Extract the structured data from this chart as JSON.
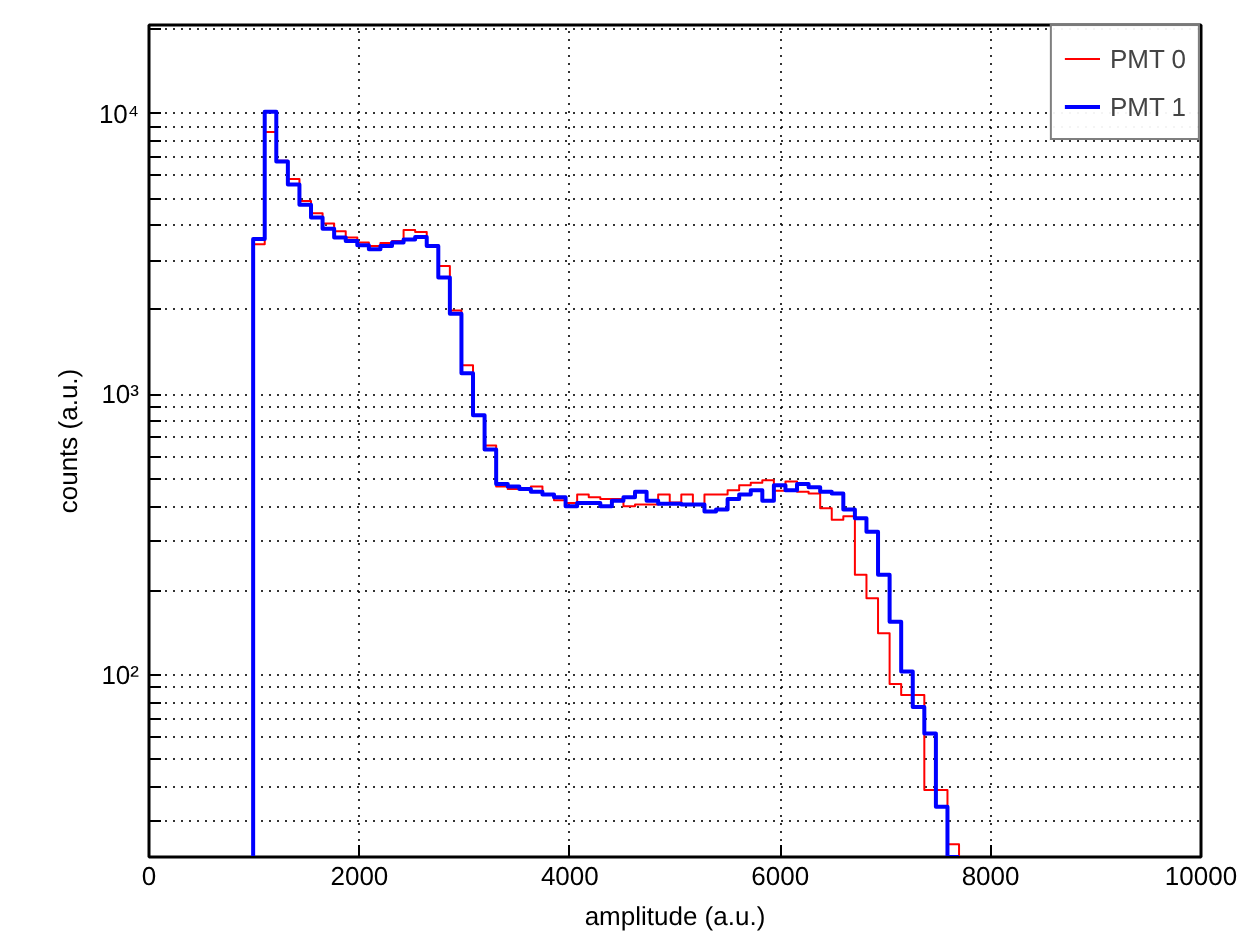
{
  "chart_data": {
    "type": "histogram",
    "xlabel": "amplitude (a.u.)",
    "ylabel": "counts (a.u.)",
    "log": "y",
    "grid": true,
    "legend": "top right",
    "line_style": "solid",
    "xlim": [
      0,
      10000
    ],
    "xticks": [
      0,
      2000,
      4000,
      6000,
      8000,
      10000
    ],
    "ylim": [
      22.5,
      20700
    ],
    "yticks": [
      {
        "value": 30,
        "label": null
      },
      {
        "value": 40,
        "label": null
      },
      {
        "value": 50,
        "label": null
      },
      {
        "value": 60,
        "label": null
      },
      {
        "value": 70,
        "label": null
      },
      {
        "value": 80,
        "label": null
      },
      {
        "value": 90,
        "label": null
      },
      {
        "value": 100,
        "label": "10²"
      },
      {
        "value": 200,
        "label": null
      },
      {
        "value": 300,
        "label": null
      },
      {
        "value": 400,
        "label": null
      },
      {
        "value": 500,
        "label": null
      },
      {
        "value": 600,
        "label": null
      },
      {
        "value": 700,
        "label": null
      },
      {
        "value": 800,
        "label": null
      },
      {
        "value": 900,
        "label": null
      },
      {
        "value": 1000,
        "label": "10³"
      },
      {
        "value": 2000,
        "label": null
      },
      {
        "value": 3000,
        "label": null
      },
      {
        "value": 4000,
        "label": null
      },
      {
        "value": 5000,
        "label": null
      },
      {
        "value": 6000,
        "label": null
      },
      {
        "value": 7000,
        "label": null
      },
      {
        "value": 8000,
        "label": null
      },
      {
        "value": 9000,
        "label": null
      },
      {
        "value": 10000,
        "label": "10⁴"
      },
      {
        "value": 20000,
        "label": null
      }
    ],
    "bins": [
      990,
      1100,
      1210,
      1320,
      1430,
      1540,
      1650,
      1760,
      1870,
      1980,
      2090,
      2200,
      2310,
      2420,
      2530,
      2640,
      2750,
      2860,
      2970,
      3080,
      3190,
      3300,
      3410,
      3520,
      3630,
      3740,
      3850,
      3960,
      4070,
      4180,
      4290,
      4400,
      4510,
      4620,
      4730,
      4840,
      4950,
      5060,
      5170,
      5280,
      5390,
      5500,
      5610,
      5720,
      5830,
      5940,
      6050,
      6160,
      6270,
      6380,
      6490,
      6600,
      6710,
      6820,
      6930,
      7040,
      7150,
      7260,
      7370,
      7480,
      7590,
      7700
    ],
    "series": [
      {
        "name": "PMT 0",
        "color": "#ff0000",
        "values": [
          3430,
          8600,
          6800,
          5850,
          4890,
          4420,
          4060,
          3810,
          3620,
          3480,
          3380,
          3460,
          3520,
          3850,
          3790,
          3400,
          2870,
          1990,
          1270,
          843,
          658,
          470,
          460,
          460,
          470,
          440,
          420,
          410,
          440,
          430,
          424,
          424,
          400,
          405,
          405,
          440,
          412,
          440,
          405,
          440,
          440,
          456,
          475,
          485,
          495,
          454,
          490,
          450,
          444,
          393,
          358,
          368,
          228,
          188,
          141,
          93,
          85,
          85,
          39,
          39,
          25
        ]
      },
      {
        "name": "PMT 1",
        "color": "#0000ff",
        "values": [
          3580,
          10160,
          6750,
          5600,
          4740,
          4270,
          3890,
          3620,
          3520,
          3400,
          3290,
          3380,
          3480,
          3560,
          3640,
          3380,
          2610,
          1940,
          1190,
          843,
          636,
          480,
          470,
          460,
          450,
          440,
          430,
          400,
          410,
          410,
          400,
          418,
          430,
          450,
          418,
          408,
          408,
          405,
          405,
          383,
          389,
          424,
          440,
          456,
          418,
          475,
          456,
          480,
          467,
          450,
          444,
          389,
          362,
          324,
          228,
          155,
          103,
          77,
          62,
          34,
          null
        ]
      }
    ]
  }
}
